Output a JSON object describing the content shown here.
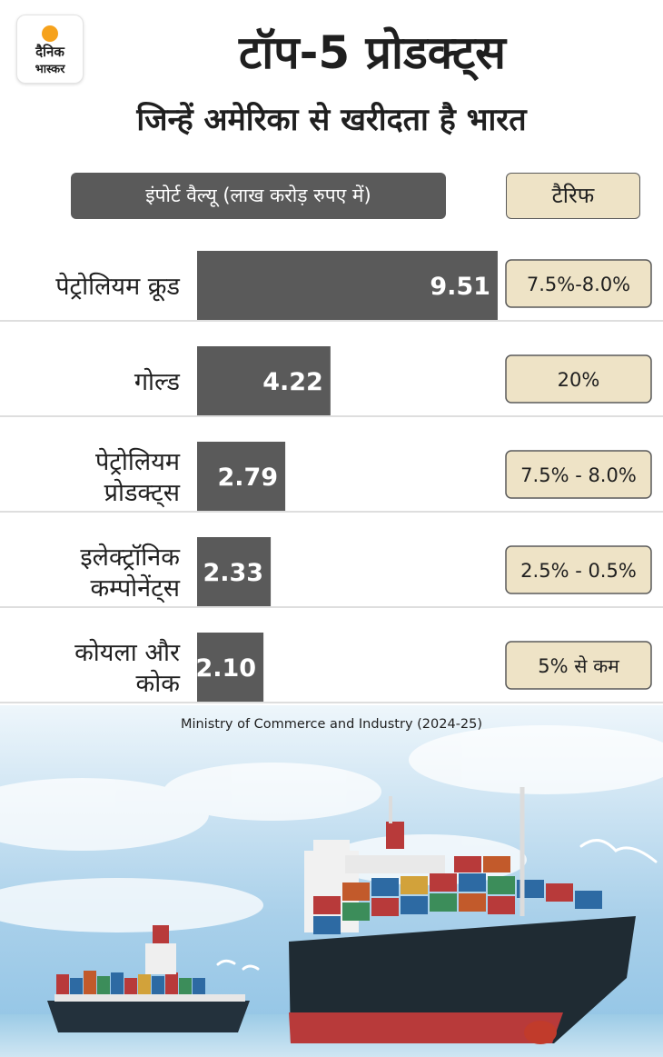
{
  "header": {
    "logo_line1": "दैनिक",
    "logo_line2": "भास्कर",
    "title": "टॉप-5 प्रोडक्ट्स",
    "subtitle": "जिन्हें अमेरिका से खरीदता है भारत"
  },
  "legend": {
    "value_label": "इंपोर्ट वैल्यू (लाख करोड़ रुपए में)",
    "tariff_label": "टैरिफ"
  },
  "chart_data": {
    "type": "bar",
    "orientation": "horizontal",
    "categories": [
      [
        "पेट्रोलियम क्रूड"
      ],
      [
        "गोल्ड"
      ],
      [
        "पेट्रोलियम",
        "प्रोडक्ट्स"
      ],
      [
        "इलेक्ट्रॉनिक",
        "कम्पोनेंट्स"
      ],
      [
        "कोयला और",
        "कोक"
      ]
    ],
    "values": [
      9.51,
      4.22,
      2.79,
      2.33,
      2.1
    ],
    "tariffs": [
      "7.5%-8.0%",
      "20%",
      "7.5% - 8.0%",
      "2.5% - 0.5%",
      "5% से कम"
    ],
    "data_labels": [
      "9.51",
      "4.22",
      "2.79",
      "2.33",
      "2.10"
    ],
    "colors": {
      "bar": "#5a5a5a",
      "tariff_bg": "#eee3c6",
      "grid": "#bdbdbd"
    }
  },
  "source": "Ministry of Commerce and Industry (2024-25)"
}
